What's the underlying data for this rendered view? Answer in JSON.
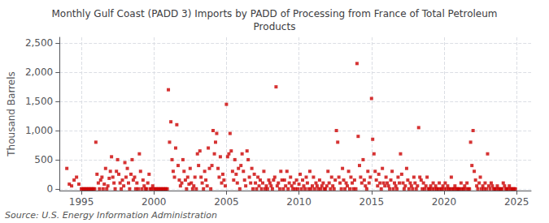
{
  "chart_data": {
    "type": "scatter",
    "title": "Monthly Gulf Coast (PADD 3) Imports by PADD of Processing from France of Total Petroleum\nProducts",
    "ylabel": "Thousand Barrels",
    "annotations": [
      "Source: U.S. Energy Information Administration"
    ],
    "color": "#cc0000",
    "marker": "square",
    "grid": true,
    "xlim": [
      1993.5,
      2026.0
    ],
    "ylim": [
      -30,
      2600
    ],
    "xticks": [
      1995,
      2000,
      2005,
      2010,
      2015,
      2020,
      2025
    ],
    "yticks": [
      0,
      500,
      {
        "value": 1000,
        "label": "1,000"
      },
      {
        "value": 1500,
        "label": "1,500"
      },
      {
        "value": 2000,
        "label": "2,000"
      },
      {
        "value": 2500,
        "label": "2,500"
      }
    ],
    "x": [
      1994.0,
      1994.17,
      1994.33,
      1994.5,
      1994.67,
      1994.83,
      1995.0,
      1995.08,
      1995.17,
      1995.25,
      1995.33,
      1995.42,
      1995.5,
      1995.58,
      1995.67,
      1995.75,
      1995.83,
      1995.92,
      1996.0,
      1996.08,
      1996.17,
      1996.25,
      1996.33,
      1996.42,
      1996.5,
      1996.58,
      1996.67,
      1996.75,
      1996.83,
      1996.92,
      1997.0,
      1997.08,
      1997.17,
      1997.25,
      1997.33,
      1997.42,
      1997.5,
      1997.58,
      1997.67,
      1997.75,
      1997.83,
      1997.92,
      1998.0,
      1998.08,
      1998.17,
      1998.25,
      1998.33,
      1998.42,
      1998.5,
      1998.58,
      1998.67,
      1998.75,
      1998.83,
      1998.92,
      1999.0,
      1999.08,
      1999.17,
      1999.25,
      1999.33,
      1999.42,
      1999.5,
      1999.58,
      1999.67,
      1999.75,
      1999.83,
      1999.92,
      2000.0,
      2000.08,
      2000.17,
      2000.25,
      2000.33,
      2000.42,
      2000.5,
      2000.58,
      2000.67,
      2000.75,
      2000.83,
      2000.92,
      2001.0,
      2001.08,
      2001.17,
      2001.25,
      2001.33,
      2001.42,
      2001.5,
      2001.58,
      2001.67,
      2001.75,
      2001.83,
      2001.92,
      2002.0,
      2002.08,
      2002.17,
      2002.25,
      2002.33,
      2002.42,
      2002.5,
      2002.58,
      2002.67,
      2002.75,
      2002.83,
      2002.92,
      2003.0,
      2003.08,
      2003.17,
      2003.25,
      2003.33,
      2003.42,
      2003.5,
      2003.58,
      2003.67,
      2003.75,
      2003.83,
      2003.92,
      2004.0,
      2004.08,
      2004.17,
      2004.25,
      2004.33,
      2004.42,
      2004.5,
      2004.58,
      2004.67,
      2004.75,
      2004.83,
      2004.92,
      2005.0,
      2005.08,
      2005.17,
      2005.25,
      2005.33,
      2005.42,
      2005.5,
      2005.58,
      2005.67,
      2005.75,
      2005.83,
      2005.92,
      2006.0,
      2006.08,
      2006.17,
      2006.25,
      2006.33,
      2006.42,
      2006.5,
      2006.58,
      2006.67,
      2006.75,
      2006.83,
      2006.92,
      2007.0,
      2007.08,
      2007.17,
      2007.25,
      2007.33,
      2007.42,
      2007.5,
      2007.58,
      2007.67,
      2007.75,
      2007.83,
      2007.92,
      2008.0,
      2008.08,
      2008.17,
      2008.25,
      2008.33,
      2008.42,
      2008.5,
      2008.58,
      2008.67,
      2008.75,
      2008.83,
      2008.92,
      2009.0,
      2009.08,
      2009.17,
      2009.25,
      2009.33,
      2009.42,
      2009.5,
      2009.58,
      2009.67,
      2009.75,
      2009.83,
      2009.92,
      2010.0,
      2010.08,
      2010.17,
      2010.25,
      2010.33,
      2010.42,
      2010.5,
      2010.58,
      2010.67,
      2010.75,
      2010.83,
      2010.92,
      2011.0,
      2011.08,
      2011.17,
      2011.25,
      2011.33,
      2011.42,
      2011.5,
      2011.58,
      2011.67,
      2011.75,
      2011.83,
      2011.92,
      2012.0,
      2012.08,
      2012.17,
      2012.25,
      2012.33,
      2012.42,
      2012.5,
      2012.58,
      2012.67,
      2012.75,
      2012.83,
      2012.92,
      2013.0,
      2013.08,
      2013.17,
      2013.25,
      2013.33,
      2013.42,
      2013.5,
      2013.58,
      2013.67,
      2013.75,
      2013.83,
      2013.92,
      2014.0,
      2014.08,
      2014.17,
      2014.25,
      2014.33,
      2014.42,
      2014.5,
      2014.58,
      2014.67,
      2014.75,
      2014.83,
      2014.92,
      2015.0,
      2015.08,
      2015.17,
      2015.25,
      2015.33,
      2015.42,
      2015.5,
      2015.58,
      2015.67,
      2015.75,
      2015.83,
      2015.92,
      2016.0,
      2016.08,
      2016.17,
      2016.25,
      2016.33,
      2016.42,
      2016.5,
      2016.58,
      2016.67,
      2016.75,
      2016.83,
      2016.92,
      2017.0,
      2017.08,
      2017.17,
      2017.25,
      2017.33,
      2017.42,
      2017.5,
      2017.58,
      2017.67,
      2017.75,
      2017.83,
      2017.92,
      2018.0,
      2018.08,
      2018.17,
      2018.25,
      2018.33,
      2018.42,
      2018.5,
      2018.58,
      2018.67,
      2018.75,
      2018.83,
      2018.92,
      2019.0,
      2019.08,
      2019.17,
      2019.25,
      2019.33,
      2019.42,
      2019.5,
      2019.58,
      2019.67,
      2019.75,
      2019.83,
      2019.92,
      2020.0,
      2020.08,
      2020.17,
      2020.25,
      2020.33,
      2020.42,
      2020.5,
      2020.58,
      2020.67,
      2020.75,
      2020.83,
      2020.92,
      2021.0,
      2021.08,
      2021.17,
      2021.25,
      2021.33,
      2021.42,
      2021.5,
      2021.58,
      2021.67,
      2021.75,
      2021.83,
      2021.92,
      2022.0,
      2022.08,
      2022.17,
      2022.25,
      2022.33,
      2022.42,
      2022.5,
      2022.58,
      2022.67,
      2022.75,
      2022.83,
      2022.92,
      2023.0,
      2023.08,
      2023.17,
      2023.25,
      2023.33,
      2023.42,
      2023.5,
      2023.58,
      2023.67,
      2023.75,
      2023.83,
      2023.92,
      2024.0,
      2024.08,
      2024.17,
      2024.25,
      2024.33,
      2024.42,
      2024.5,
      2024.58,
      2024.67,
      2024.75,
      2024.83,
      2024.92
    ],
    "values": [
      350,
      80,
      50,
      150,
      200,
      80,
      0,
      0,
      0,
      0,
      0,
      0,
      0,
      0,
      0,
      0,
      0,
      0,
      800,
      250,
      100,
      0,
      150,
      200,
      0,
      80,
      350,
      0,
      50,
      180,
      300,
      550,
      200,
      100,
      0,
      300,
      500,
      250,
      100,
      0,
      150,
      50,
      450,
      200,
      350,
      100,
      0,
      250,
      500,
      150,
      200,
      0,
      100,
      0,
      600,
      300,
      0,
      150,
      50,
      0,
      0,
      100,
      250,
      0,
      0,
      50,
      0,
      0,
      0,
      0,
      0,
      0,
      0,
      0,
      0,
      0,
      0,
      0,
      1700,
      800,
      1150,
      500,
      300,
      200,
      700,
      1100,
      400,
      150,
      50,
      100,
      500,
      300,
      150,
      0,
      200,
      80,
      350,
      100,
      0,
      50,
      200,
      0,
      600,
      400,
      650,
      200,
      100,
      0,
      300,
      150,
      50,
      700,
      350,
      0,
      400,
      1000,
      600,
      800,
      950,
      350,
      200,
      550,
      100,
      250,
      150,
      50,
      1450,
      550,
      600,
      950,
      650,
      300,
      150,
      500,
      250,
      100,
      350,
      0,
      400,
      600,
      300,
      150,
      50,
      650,
      500,
      200,
      100,
      350,
      0,
      250,
      100,
      0,
      200,
      50,
      150,
      0,
      100,
      300,
      0,
      50,
      0,
      150,
      100,
      50,
      0,
      150,
      200,
      1750,
      50,
      100,
      0,
      300,
      150,
      0,
      150,
      50,
      300,
      0,
      100,
      200,
      50,
      0,
      100,
      0,
      150,
      0,
      80,
      250,
      0,
      150,
      50,
      0,
      200,
      100,
      0,
      300,
      0,
      50,
      200,
      0,
      100,
      50,
      0,
      150,
      0,
      50,
      100,
      0,
      0,
      50,
      300,
      100,
      0,
      200,
      50,
      0,
      150,
      1000,
      800,
      200,
      100,
      0,
      350,
      150,
      0,
      100,
      50,
      300,
      0,
      200,
      100,
      0,
      150,
      0,
      2150,
      900,
      400,
      200,
      100,
      500,
      150,
      50,
      0,
      300,
      100,
      200,
      1550,
      850,
      600,
      300,
      150,
      50,
      250,
      100,
      0,
      350,
      100,
      50,
      200,
      100,
      50,
      0,
      150,
      300,
      0,
      100,
      50,
      0,
      200,
      100,
      600,
      250,
      100,
      0,
      50,
      350,
      150,
      0,
      100,
      50,
      0,
      200,
      100,
      0,
      50,
      1050,
      200,
      150,
      0,
      100,
      0,
      50,
      200,
      0,
      0,
      50,
      0,
      100,
      0,
      50,
      0,
      0,
      100,
      0,
      0,
      50,
      0,
      100,
      0,
      50,
      0,
      0,
      200,
      0,
      0,
      50,
      0,
      0,
      0,
      0,
      100,
      0,
      0,
      50,
      0,
      100,
      0,
      0,
      800,
      400,
      1000,
      300,
      150,
      50,
      0,
      100,
      200,
      0,
      50,
      0,
      100,
      0,
      600,
      50,
      0,
      100,
      50,
      0,
      0,
      0,
      50,
      0,
      0,
      0,
      0,
      100,
      50,
      0,
      0,
      0,
      50,
      0,
      0,
      0,
      0,
      0
    ]
  }
}
